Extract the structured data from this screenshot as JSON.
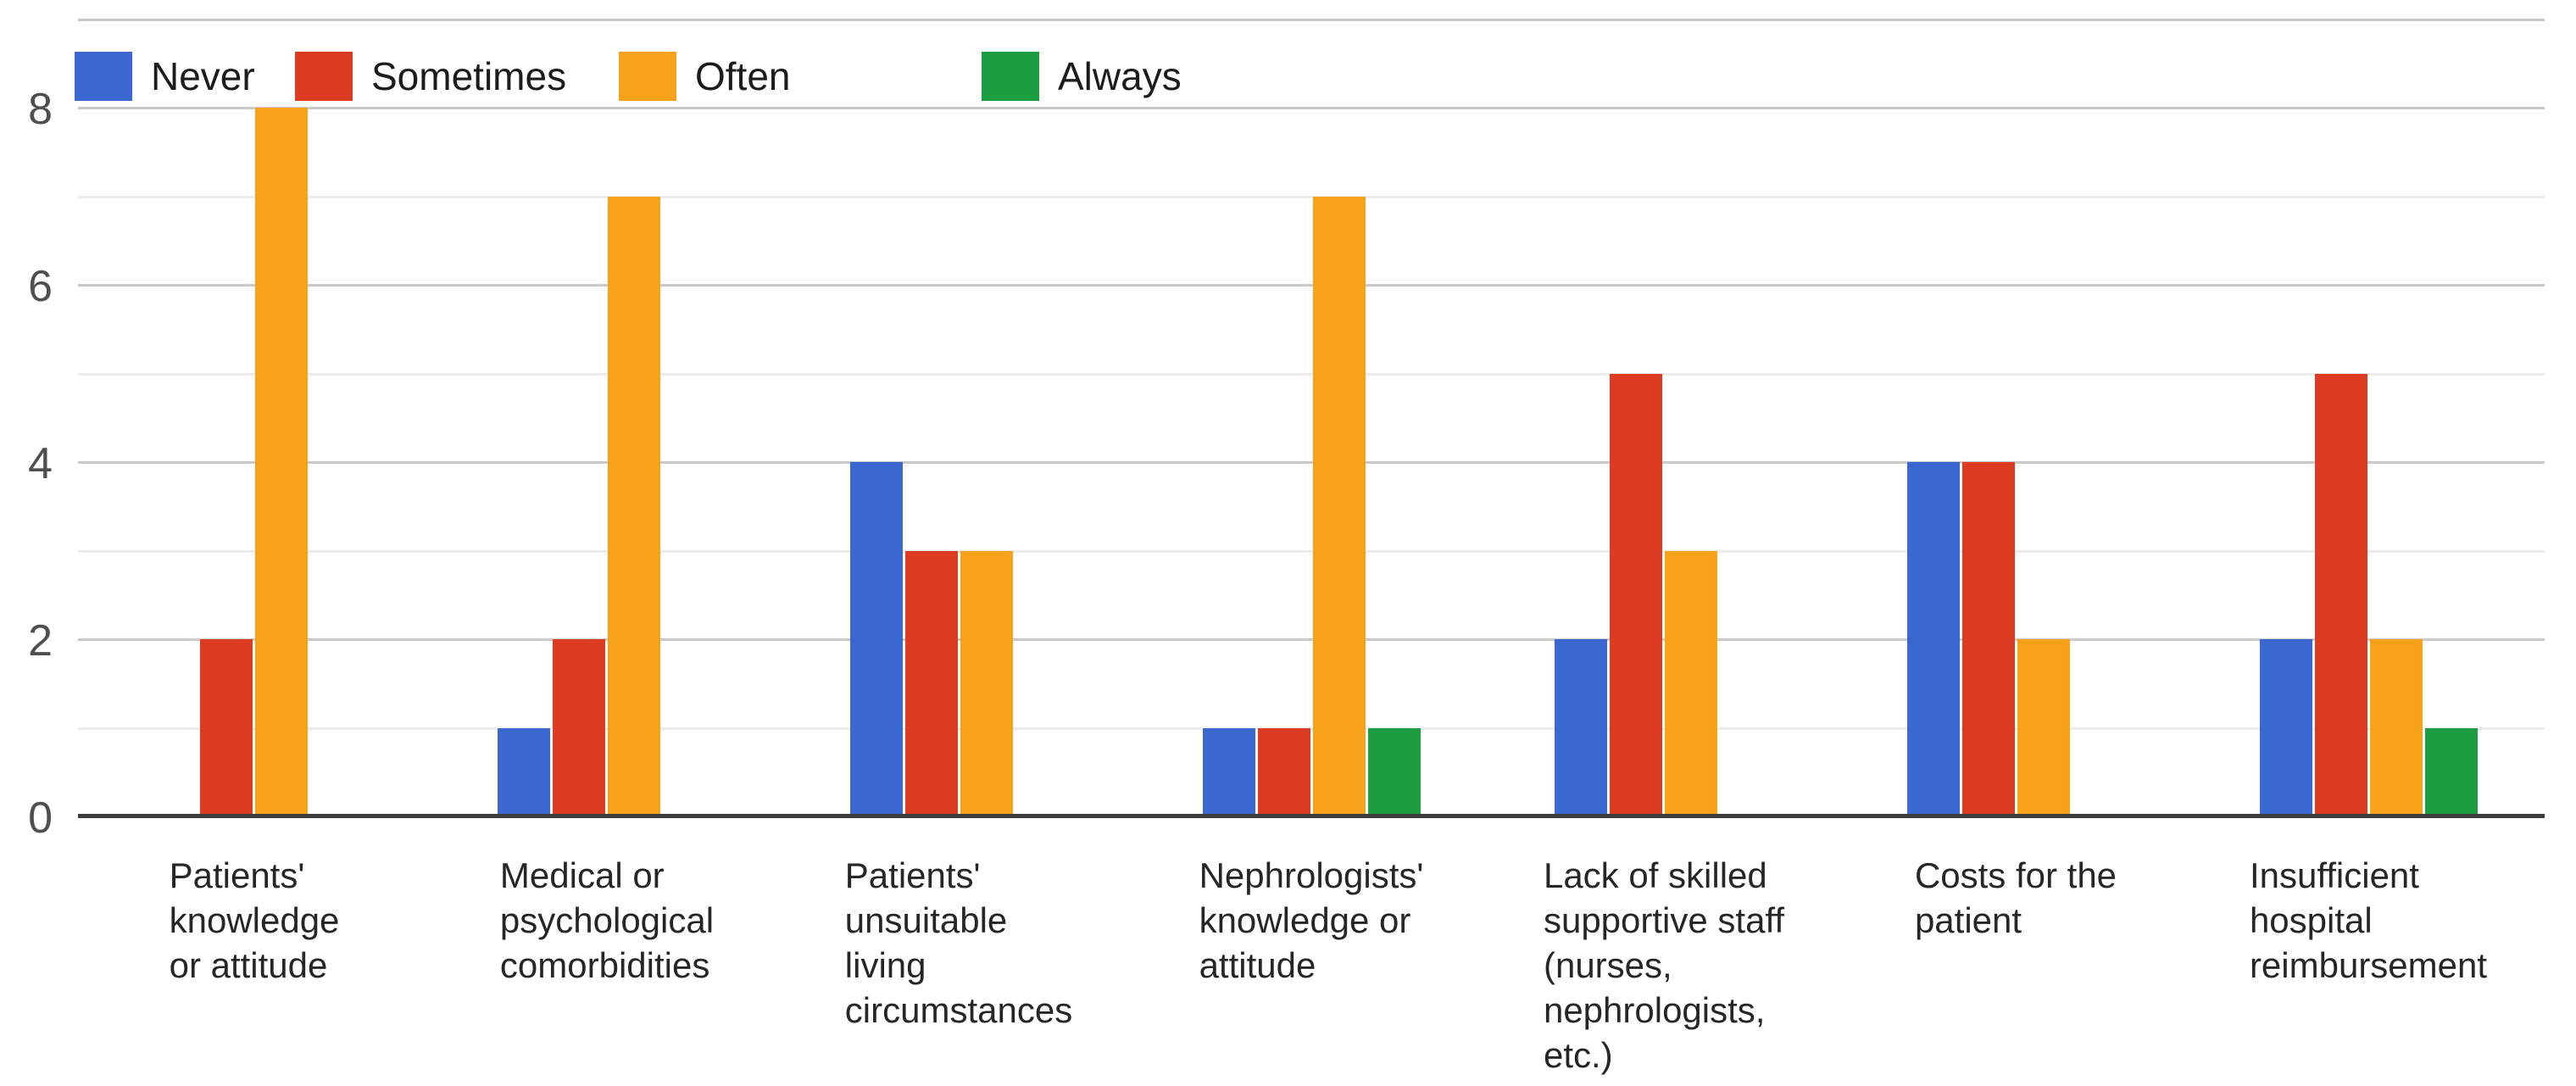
{
  "figure": {
    "background": "#ffffff"
  },
  "axes": {
    "y_tick_labels": [
      "0",
      "2",
      "4",
      "6",
      "8"
    ],
    "y_tick_values": [
      0,
      2,
      4,
      6,
      8
    ]
  },
  "chart_data": {
    "type": "bar",
    "title": "",
    "xlabel": "",
    "ylabel": "",
    "categories": [
      "Patients' knowledge or attitude",
      "Medical or psychological comorbidities",
      "Patients' unsuitable living circumstances",
      "Nephrologists' knowledge or attitude",
      "Lack of skilled supportive staff (nurses, nephrologists, etc.)",
      "Costs for the patient",
      "Insufficient hospital reimbursement"
    ],
    "category_label_lines": [
      [
        "Patients'",
        "knowledge",
        "or attitude"
      ],
      [
        "Medical or",
        "psychological",
        "comorbidities"
      ],
      [
        "Patients'",
        "unsuitable",
        "living",
        "circumstances"
      ],
      [
        "Nephrologists'",
        "knowledge or",
        "attitude"
      ],
      [
        "Lack of skilled",
        "supportive staff",
        "(nurses,",
        "nephrologists,",
        "etc.)"
      ],
      [
        "Costs for the",
        "patient"
      ],
      [
        "Insufficient",
        "hospital",
        "reimbursement"
      ]
    ],
    "series": [
      {
        "name": "Never",
        "color": "#3A67D0",
        "values": [
          0,
          1,
          4,
          1,
          2,
          4,
          2
        ]
      },
      {
        "name": "Sometimes",
        "color": "#DD3B22",
        "values": [
          2,
          2,
          3,
          1,
          5,
          4,
          5
        ]
      },
      {
        "name": "Often",
        "color": "#F7A219",
        "values": [
          8,
          7,
          3,
          7,
          3,
          2,
          2
        ]
      },
      {
        "name": "Always",
        "color": "#1C9E40",
        "values": [
          0,
          0,
          0,
          1,
          0,
          0,
          1
        ]
      }
    ],
    "ylim": [
      0,
      9
    ],
    "yticks": [
      0,
      2,
      4,
      6,
      8
    ],
    "grid": true,
    "gridline_step": 1,
    "legend_position": "top-left-inside"
  },
  "colors": {
    "axis_line": "#3d3d3d",
    "gridline_major": "#c9c9c9",
    "gridline_minor": "#ececec",
    "tick_text": "#4f4f4f",
    "label_text": "#262626",
    "legend_text": "#1c1c1c"
  }
}
